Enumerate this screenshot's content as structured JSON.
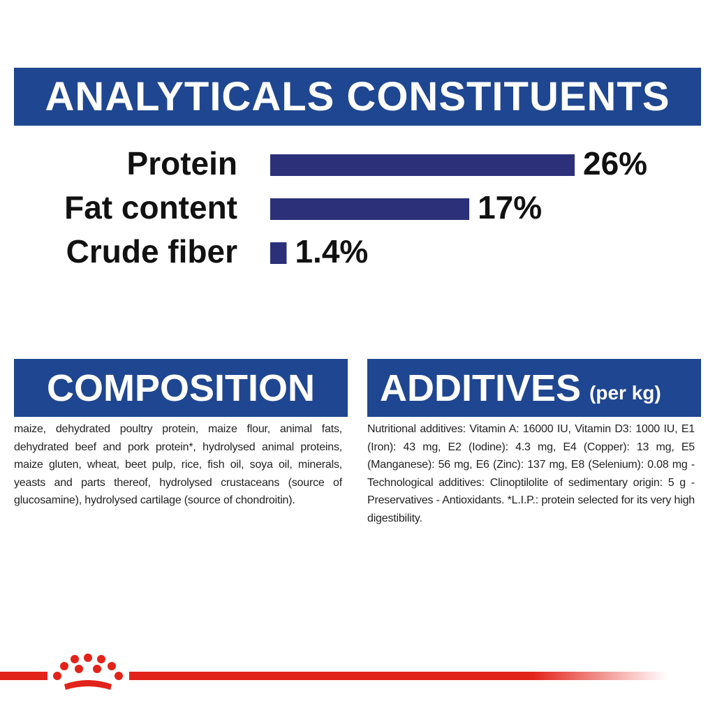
{
  "chart_data": {
    "type": "bar",
    "orientation": "horizontal",
    "title": "ANALYTICALS CONSTITUENTS",
    "categories": [
      "Protein",
      "Fat content",
      "Crude fiber"
    ],
    "values": [
      26,
      17,
      1.4
    ],
    "value_labels": [
      "26%",
      "17%",
      "1.4%"
    ],
    "color": "#2b3079"
  },
  "composition": {
    "title": "COMPOSITION",
    "text": "maize, dehydrated poultry protein, maize flour, animal fats, dehydrated beef and pork protein*, hydrolysed animal proteins, maize gluten, wheat, beet pulp, rice, fish oil, soya oil, minerals, yeasts and parts thereof, hydrolysed crustaceans (source of glucosamine), hydrolysed cartilage (source of chondroitin)."
  },
  "additives": {
    "title": "ADDITIVES",
    "subtitle": "(per kg)",
    "text": "Nutritional additives: Vitamin A: 16000 IU, Vitamin D3: 1000 IU, E1 (Iron): 43 mg, E2 (Iodine): 4.3 mg, E4 (Copper): 13 mg, E5 (Manganese): 56 mg, E6 (Zinc): 137 mg, E8 (Selenium): 0.08 mg - Technological additives: Clinoptilolite of sedimentary origin: 5 g - Preservatives - Antioxidants. *L.I.P.: protein selected for its very high digestibility."
  }
}
